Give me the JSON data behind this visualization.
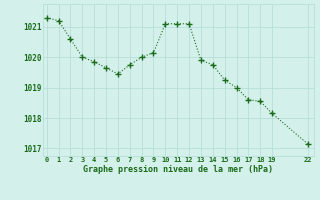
{
  "x": [
    0,
    1,
    2,
    3,
    4,
    5,
    6,
    7,
    8,
    9,
    10,
    11,
    12,
    13,
    14,
    15,
    16,
    17,
    18,
    19,
    22
  ],
  "y": [
    1021.3,
    1021.2,
    1020.6,
    1020.0,
    1019.85,
    1019.65,
    1019.45,
    1019.75,
    1020.0,
    1020.15,
    1021.1,
    1021.1,
    1021.1,
    1019.9,
    1019.75,
    1019.25,
    1019.0,
    1018.6,
    1018.55,
    1018.15,
    1017.15
  ],
  "ylim": [
    1016.75,
    1021.75
  ],
  "yticks": [
    1017,
    1018,
    1019,
    1020,
    1021
  ],
  "xticks": [
    0,
    1,
    2,
    3,
    4,
    5,
    6,
    7,
    8,
    9,
    10,
    11,
    12,
    13,
    14,
    15,
    16,
    17,
    18,
    19,
    22
  ],
  "xlim": [
    -0.3,
    22.5
  ],
  "xlabel": "Graphe pression niveau de la mer (hPa)",
  "line_color": "#1a6b1a",
  "marker": "+",
  "bg_color": "#d4f0eb",
  "grid_color": "#b8ddd8",
  "tick_color": "#1a6b1a",
  "label_color": "#1a6b1a",
  "linewidth": 0.8,
  "markersize": 4,
  "markeredgewidth": 1.0
}
